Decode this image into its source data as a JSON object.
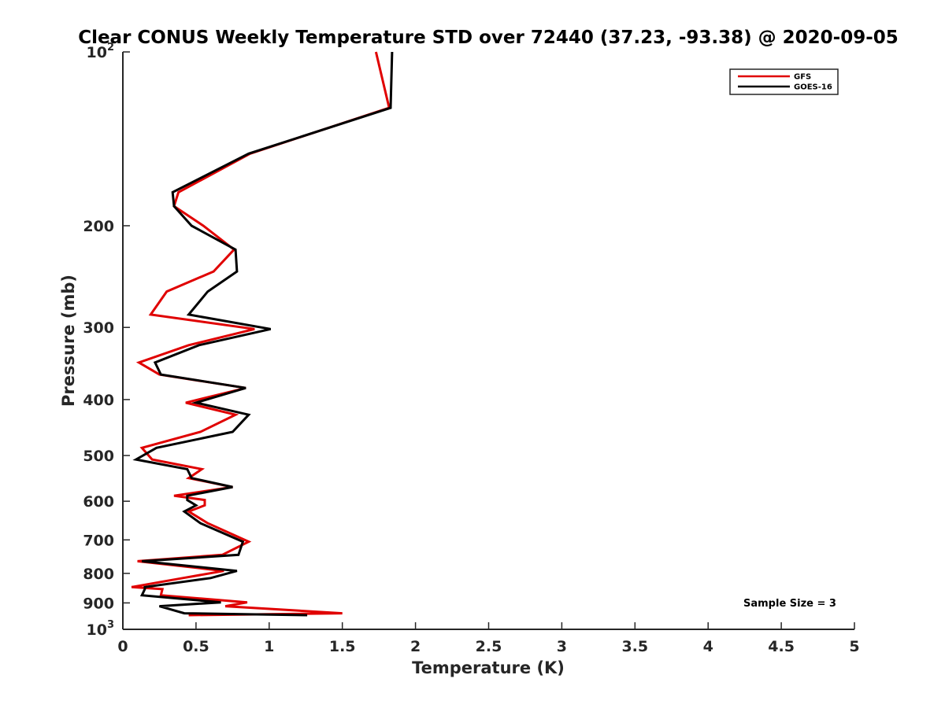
{
  "chart_data": {
    "type": "line",
    "title": "Clear CONUS Weekly Temperature STD over 72440 (37.23, -93.38) @ 2020-09-05",
    "xlabel": "Temperature (K)",
    "ylabel": "Pressure (mb)",
    "xlim": [
      0,
      5
    ],
    "ylim": [
      1000,
      100
    ],
    "y_scale": "log",
    "grid": false,
    "legend_position": "top-right",
    "x_ticks": [
      0,
      0.5,
      1,
      1.5,
      2,
      2.5,
      3,
      3.5,
      4,
      4.5,
      5
    ],
    "x_tick_labels": [
      "0",
      "0.5",
      "1",
      "1.5",
      "2",
      "2.5",
      "3",
      "3.5",
      "4",
      "4.5",
      "5"
    ],
    "y_ticks": [
      100,
      200,
      300,
      400,
      500,
      600,
      700,
      800,
      900,
      1000
    ],
    "y_tick_labels": [
      {
        "base": "10",
        "exp": "2"
      },
      {
        "base": "200"
      },
      {
        "base": "300"
      },
      {
        "base": "400"
      },
      {
        "base": "500"
      },
      {
        "base": "600"
      },
      {
        "base": "700"
      },
      {
        "base": "800"
      },
      {
        "base": "900"
      },
      {
        "base": "10",
        "exp": "3"
      }
    ],
    "series": [
      {
        "name": "GFS",
        "color": "#e00000",
        "points": [
          [
            1.73,
            100
          ],
          [
            1.82,
            125
          ],
          [
            0.87,
            150
          ],
          [
            0.38,
            175
          ],
          [
            0.35,
            185
          ],
          [
            0.55,
            200
          ],
          [
            0.76,
            220
          ],
          [
            0.62,
            240
          ],
          [
            0.3,
            260
          ],
          [
            0.19,
            285
          ],
          [
            0.9,
            302
          ],
          [
            0.45,
            322
          ],
          [
            0.11,
            345
          ],
          [
            0.25,
            362
          ],
          [
            0.84,
            382
          ],
          [
            0.43,
            405
          ],
          [
            0.77,
            425
          ],
          [
            0.53,
            455
          ],
          [
            0.13,
            485
          ],
          [
            0.2,
            508
          ],
          [
            0.54,
            528
          ],
          [
            0.45,
            547
          ],
          [
            0.75,
            567
          ],
          [
            0.35,
            587
          ],
          [
            0.56,
            597
          ],
          [
            0.56,
            610
          ],
          [
            0.45,
            625
          ],
          [
            0.58,
            655
          ],
          [
            0.86,
            705
          ],
          [
            0.68,
            743
          ],
          [
            0.1,
            762
          ],
          [
            0.69,
            792
          ],
          [
            0.41,
            815
          ],
          [
            0.06,
            845
          ],
          [
            0.27,
            852
          ],
          [
            0.26,
            873
          ],
          [
            0.85,
            898
          ],
          [
            0.7,
            912
          ],
          [
            1.5,
            938
          ],
          [
            0.45,
            945
          ]
        ]
      },
      {
        "name": "GOES-16",
        "color": "#000000",
        "points": [
          [
            1.84,
            100
          ],
          [
            1.83,
            125
          ],
          [
            0.86,
            150
          ],
          [
            0.34,
            175
          ],
          [
            0.35,
            185
          ],
          [
            0.47,
            200
          ],
          [
            0.77,
            220
          ],
          [
            0.78,
            240
          ],
          [
            0.58,
            260
          ],
          [
            0.45,
            285
          ],
          [
            1.01,
            302
          ],
          [
            0.52,
            322
          ],
          [
            0.22,
            345
          ],
          [
            0.26,
            362
          ],
          [
            0.84,
            382
          ],
          [
            0.5,
            405
          ],
          [
            0.86,
            425
          ],
          [
            0.75,
            455
          ],
          [
            0.23,
            485
          ],
          [
            0.09,
            508
          ],
          [
            0.44,
            528
          ],
          [
            0.47,
            547
          ],
          [
            0.75,
            567
          ],
          [
            0.44,
            587
          ],
          [
            0.44,
            597
          ],
          [
            0.5,
            610
          ],
          [
            0.42,
            625
          ],
          [
            0.53,
            655
          ],
          [
            0.82,
            705
          ],
          [
            0.79,
            743
          ],
          [
            0.13,
            762
          ],
          [
            0.78,
            792
          ],
          [
            0.6,
            815
          ],
          [
            0.15,
            845
          ],
          [
            0.15,
            852
          ],
          [
            0.13,
            873
          ],
          [
            0.67,
            898
          ],
          [
            0.25,
            912
          ],
          [
            0.42,
            938
          ],
          [
            1.26,
            945
          ]
        ]
      }
    ],
    "annotation": "Sample Size = 3"
  }
}
